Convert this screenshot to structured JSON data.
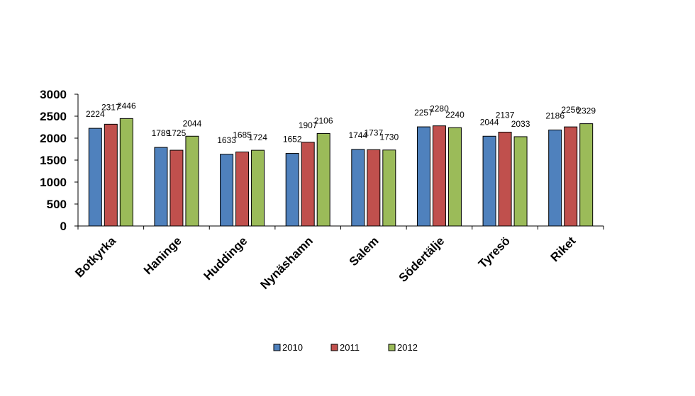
{
  "chart_data": {
    "type": "bar",
    "categories": [
      "Botkyrka",
      "Haninge",
      "Huddinge",
      "Nynäshamn",
      "Salem",
      "Södertälje",
      "Tyresö",
      "Riket"
    ],
    "series": [
      {
        "name": "2010",
        "color": "#4f81bd",
        "values": [
          2224,
          1789,
          1633,
          1652,
          1744,
          2257,
          2044,
          2186
        ]
      },
      {
        "name": "2011",
        "color": "#c0504d",
        "values": [
          2317,
          1725,
          1685,
          1907,
          1737,
          2280,
          2137,
          2256
        ]
      },
      {
        "name": "2012",
        "color": "#9bbb59",
        "values": [
          2446,
          2044,
          1724,
          2106,
          1730,
          2240,
          2033,
          2329
        ]
      }
    ],
    "yticks": [
      "0",
      "500",
      "1000",
      "1500",
      "2000",
      "2500",
      "3000"
    ],
    "ylim": [
      0,
      3000
    ],
    "grid": false,
    "legend_position": "bottom",
    "title": "",
    "xlabel": "",
    "ylabel": ""
  }
}
